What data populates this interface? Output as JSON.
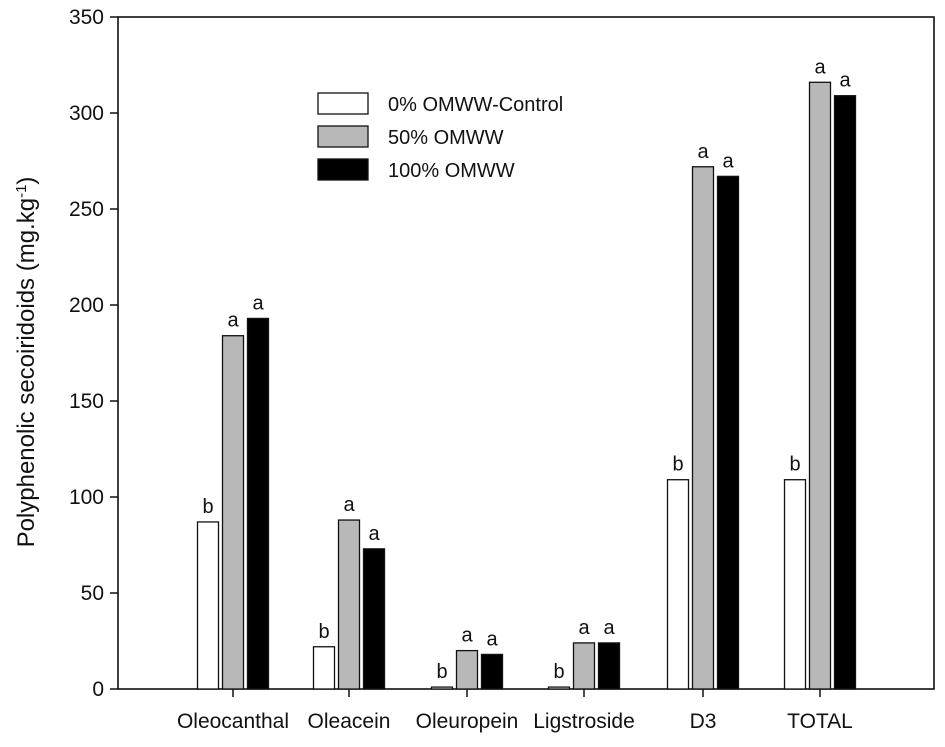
{
  "chart_data": {
    "type": "bar",
    "title": "",
    "xlabel": "",
    "ylabel": "Polyphenolic secoiridoids (mg.kg-1)",
    "ylabel_main": "Polyphenolic secoiridoids (mg.kg",
    "ylabel_sup": "-1",
    "ylabel_close": ")",
    "ylim": [
      0,
      350
    ],
    "yticks": [
      0,
      50,
      100,
      150,
      200,
      250,
      300,
      350
    ],
    "categories": [
      "Oleocanthal",
      "Oleacein",
      "Oleuropein",
      "Ligstroside",
      "D3",
      "TOTAL"
    ],
    "series": [
      {
        "name": "0% OMWW-Control",
        "color": "#ffffff",
        "values": [
          87,
          22,
          1,
          1,
          109,
          109
        ],
        "letters": [
          "b",
          "b",
          "b",
          "b",
          "b",
          "b"
        ]
      },
      {
        "name": "50% OMWW",
        "color": "#b8b8b8",
        "values": [
          184,
          88,
          20,
          24,
          272,
          316
        ],
        "letters": [
          "a",
          "a",
          "a",
          "a",
          "a",
          "a"
        ]
      },
      {
        "name": "100% OMWW",
        "color": "#000000",
        "values": [
          193,
          73,
          18,
          24,
          267,
          309
        ],
        "letters": [
          "a",
          "a",
          "a",
          "a",
          "a",
          "a"
        ]
      }
    ],
    "legend_position": "top-center",
    "grid": false
  }
}
